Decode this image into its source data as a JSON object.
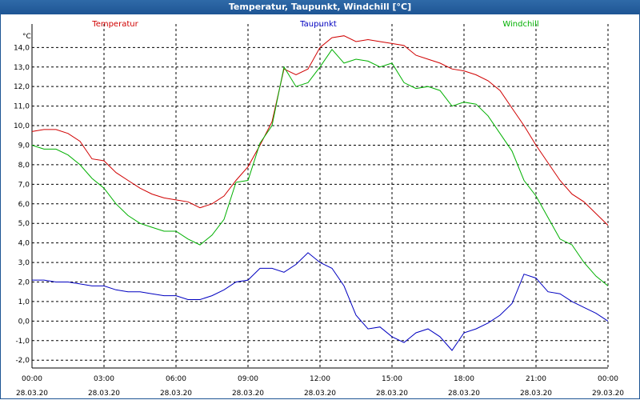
{
  "window": {
    "title": "Temperatur, Taupunkt, Windchill [°C]"
  },
  "chart_data": {
    "type": "line",
    "title": "Temperatur, Taupunkt, Windchill [°C]",
    "ylabel": "°C",
    "ylim": [
      -2.4,
      15.2
    ],
    "xlim": [
      0,
      24
    ],
    "grid": true,
    "legend_placement": "top",
    "y_ticks": [
      "-2,0",
      "-1,0",
      "0,0",
      "1,0",
      "2,0",
      "3,0",
      "4,0",
      "5,0",
      "6,0",
      "7,0",
      "8,0",
      "9,0",
      "10,0",
      "11,0",
      "12,0",
      "13,0",
      "14,0"
    ],
    "x_ticks": [
      {
        "time": "00:00",
        "date": "28.03.20"
      },
      {
        "time": "03:00",
        "date": "28.03.20"
      },
      {
        "time": "06:00",
        "date": "28.03.20"
      },
      {
        "time": "09:00",
        "date": "28.03.20"
      },
      {
        "time": "12:00",
        "date": "28.03.20"
      },
      {
        "time": "15:00",
        "date": "28.03.20"
      },
      {
        "time": "18:00",
        "date": "28.03.20"
      },
      {
        "time": "21:00",
        "date": "28.03.20"
      },
      {
        "time": "00:00",
        "date": "29.03.20"
      }
    ],
    "x": [
      0,
      0.5,
      1,
      1.5,
      2,
      2.5,
      3,
      3.5,
      4,
      4.5,
      5,
      5.5,
      6,
      6.5,
      7,
      7.5,
      8,
      8.5,
      9,
      9.5,
      10,
      10.5,
      11,
      11.5,
      12,
      12.5,
      13,
      13.5,
      14,
      14.5,
      15,
      15.5,
      16,
      16.5,
      17,
      17.5,
      18,
      18.5,
      19,
      19.5,
      20,
      20.5,
      21,
      21.5,
      22,
      22.5,
      23,
      23.5,
      24
    ],
    "series": [
      {
        "name": "Temperatur",
        "color": "#d00000",
        "values": [
          9.7,
          9.8,
          9.8,
          9.6,
          9.2,
          8.3,
          8.2,
          7.6,
          7.2,
          6.8,
          6.5,
          6.3,
          6.2,
          6.1,
          5.8,
          6.0,
          6.4,
          7.2,
          7.9,
          9.0,
          10.2,
          12.9,
          12.6,
          12.9,
          14.0,
          14.5,
          14.6,
          14.3,
          14.4,
          14.3,
          14.2,
          14.1,
          13.6,
          13.4,
          13.2,
          12.9,
          12.8,
          12.6,
          12.3,
          11.8,
          10.9,
          10.0,
          9.0,
          8.1,
          7.2,
          6.5,
          6.1,
          5.5,
          4.9
        ]
      },
      {
        "name": "Taupunkt",
        "color": "#0000c0",
        "values": [
          2.1,
          2.1,
          2.0,
          2.0,
          1.9,
          1.8,
          1.8,
          1.6,
          1.5,
          1.5,
          1.4,
          1.3,
          1.3,
          1.1,
          1.1,
          1.3,
          1.6,
          2.0,
          2.1,
          2.7,
          2.7,
          2.5,
          2.9,
          3.5,
          3.0,
          2.7,
          1.8,
          0.3,
          -0.4,
          -0.3,
          -0.8,
          -1.1,
          -0.6,
          -0.4,
          -0.8,
          -1.5,
          -0.6,
          -0.4,
          -0.1,
          0.3,
          0.9,
          2.4,
          2.2,
          1.5,
          1.4,
          1.0,
          0.7,
          0.4,
          0.0
        ]
      },
      {
        "name": "Windchill",
        "color": "#00b000",
        "values": [
          9.0,
          8.8,
          8.8,
          8.5,
          8.0,
          7.3,
          6.8,
          6.0,
          5.4,
          5.0,
          4.8,
          4.6,
          4.6,
          4.2,
          3.9,
          4.4,
          5.2,
          7.1,
          7.2,
          9.1,
          10.0,
          13.0,
          12.0,
          12.2,
          13.0,
          13.9,
          13.2,
          13.4,
          13.3,
          13.0,
          13.2,
          12.2,
          11.9,
          12.0,
          11.8,
          11.0,
          11.2,
          11.1,
          10.5,
          9.6,
          8.7,
          7.2,
          6.4,
          5.3,
          4.2,
          3.9,
          3.0,
          2.3,
          1.8
        ]
      }
    ]
  }
}
